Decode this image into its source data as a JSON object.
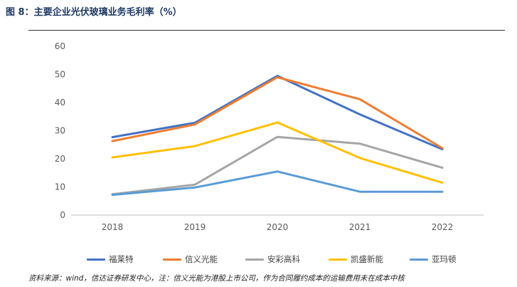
{
  "title": "图 8：主要企业光伏玻璃业务毛利率（%）",
  "source_note": "资料来源：wind，信达证券研发中心，注：信义光能为港股上市公司，作为合同履约成本的运输费用未在成本中核",
  "colors": {
    "title": "#1f3864",
    "axis": "#bfbfbf",
    "tick_text": "#595959"
  },
  "chart_data": {
    "type": "line",
    "title": "",
    "xlabel": "",
    "ylabel": "",
    "categories": [
      "2018",
      "2019",
      "2020",
      "2021",
      "2022"
    ],
    "ylim": [
      0,
      60
    ],
    "yticks": [
      0,
      10,
      20,
      30,
      40,
      50,
      60
    ],
    "grid": false,
    "legend_position": "bottom",
    "series": [
      {
        "name": "福莱特",
        "color": "#4472c4",
        "values": [
          27.7,
          32.8,
          49.5,
          35.8,
          23.4
        ]
      },
      {
        "name": "信义光能",
        "color": "#ed7d31",
        "values": [
          26.3,
          32.2,
          49.0,
          41.2,
          23.8
        ]
      },
      {
        "name": "安彩高科",
        "color": "#a5a5a5",
        "values": [
          7.4,
          10.8,
          27.8,
          25.4,
          16.8
        ]
      },
      {
        "name": "凯盛新能",
        "color": "#ffc000",
        "values": [
          20.5,
          24.5,
          32.9,
          20.3,
          11.5
        ]
      },
      {
        "name": "亚玛顿",
        "color": "#5b9bd5",
        "values": [
          7.2,
          9.8,
          15.5,
          8.3,
          8.3
        ]
      }
    ]
  }
}
